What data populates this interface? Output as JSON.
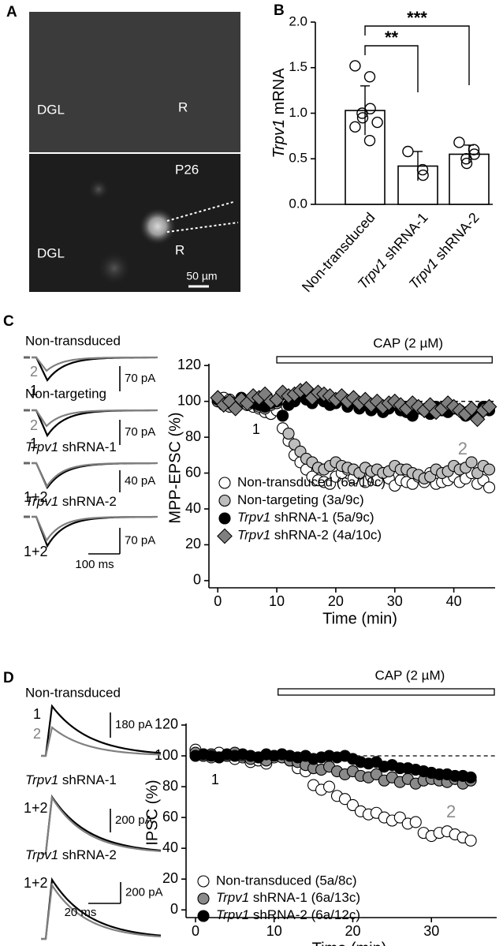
{
  "panels": [
    "A",
    "B",
    "C",
    "D"
  ],
  "panel_a": {
    "top_labels": [
      "DGL",
      "R"
    ],
    "bottom_labels": [
      "P26",
      "R",
      "DGL"
    ],
    "scale": "50 µm"
  },
  "chart_data": [
    {
      "type": "bar",
      "ylabel": "Trpv1 mRNA",
      "categories": [
        "Non-transduced",
        "Trpv1 shRNA-1",
        "Trpv1 shRNA-2"
      ],
      "values": [
        1.03,
        0.42,
        0.55
      ],
      "errors": [
        0.27,
        0.16,
        0.1
      ],
      "points": [
        [
          1.52,
          1.4,
          1.05,
          1.0,
          0.95,
          0.9,
          0.85,
          0.7
        ],
        [
          0.58,
          0.38,
          0.32
        ],
        [
          0.68,
          0.6,
          0.55,
          0.5,
          0.45
        ]
      ],
      "color": "#ffffff",
      "ylim": [
        0,
        2
      ],
      "yticks": [
        {
          "value": 0,
          "label": "0.0"
        },
        0.5,
        {
          "value": 1,
          "label": "1.0"
        },
        1.5,
        {
          "value": 2,
          "label": "2.0"
        }
      ],
      "significance": [
        {
          "label": "**",
          "from": 0,
          "to": 1
        },
        {
          "label": "***",
          "from": 0,
          "to": 2
        }
      ]
    },
    {
      "type": "scatter",
      "xlabel": "Time (min)",
      "ylabel": "MPP-EPSC (%)",
      "x": [
        0,
        1,
        2,
        3,
        4,
        5,
        6,
        7,
        8,
        9,
        10,
        11,
        12,
        13,
        14,
        15,
        16,
        17,
        18,
        19,
        20,
        21,
        22,
        23,
        24,
        25,
        26,
        27,
        28,
        29,
        30,
        31,
        32,
        33,
        34,
        35,
        36,
        37,
        38,
        39,
        40,
        41,
        42,
        43,
        44,
        45,
        46
      ],
      "series": [
        {
          "name": "Non-transduced (6a/10c)",
          "color": "#ffffff",
          "marker": "circle",
          "values": [
            100,
            102,
            101,
            99,
            100,
            98,
            97,
            96,
            94,
            93,
            95,
            85,
            78,
            70,
            66,
            62,
            58,
            56,
            55,
            54,
            58,
            60,
            62,
            57,
            60,
            55,
            58,
            56,
            60,
            57,
            53,
            56,
            55,
            54,
            58,
            55,
            60,
            54,
            55,
            56,
            58,
            55,
            57,
            60,
            54,
            56,
            52
          ]
        },
        {
          "name": "Non-targeting (3a/9c)",
          "color": "#bdbdbd",
          "marker": "circle",
          "values": [
            100,
            98,
            97,
            99,
            101,
            98,
            100,
            97,
            96,
            98,
            99,
            92,
            82,
            76,
            72,
            68,
            66,
            63,
            62,
            64,
            66,
            64,
            63,
            62,
            60,
            63,
            61,
            62,
            60,
            61,
            64,
            62,
            62,
            60,
            59,
            57,
            58,
            62,
            60,
            61,
            64,
            62,
            63,
            66,
            60,
            64,
            62
          ]
        },
        {
          "name": "Trpv1 shRNA-1 (5a/9c)",
          "color": "#000000",
          "marker": "circle",
          "values": [
            101,
            99,
            100,
            98,
            102,
            100,
            99,
            98,
            97,
            99,
            100,
            92,
            98,
            100,
            103,
            101,
            99,
            102,
            100,
            98,
            99,
            101,
            97,
            100,
            96,
            98,
            95,
            97,
            94,
            96,
            98,
            95,
            94,
            92,
            96,
            95,
            93,
            97,
            95,
            94,
            96,
            95,
            92,
            94,
            93,
            97,
            95
          ]
        },
        {
          "name": "Trpv1 shRNA-2 (4a/10c)",
          "color": "#7f7f7f",
          "marker": "diamond",
          "values": [
            102,
            98,
            100,
            96,
            101,
            99,
            103,
            102,
            104,
            100,
            101,
            105,
            103,
            104,
            106,
            107,
            102,
            105,
            104,
            103,
            101,
            103,
            100,
            102,
            99,
            101,
            98,
            100,
            97,
            99,
            100,
            98,
            96,
            99,
            97,
            95,
            98,
            94,
            96,
            99,
            97,
            95,
            93,
            96,
            90,
            95,
            97
          ]
        }
      ],
      "xlim": [
        -1.5,
        47
      ],
      "xticks": [
        0,
        10,
        20,
        30,
        40
      ],
      "ylim": [
        -4,
        121
      ],
      "yticks": [
        0,
        20,
        40,
        60,
        80,
        100,
        120
      ],
      "hline": 100,
      "bar": {
        "label": "CAP (2 µM)",
        "x": [
          10,
          46.5
        ]
      },
      "annotations": [
        {
          "text": "1",
          "x": 6.5,
          "y": 84,
          "color": "#000000"
        },
        {
          "text": "2",
          "x": 41.5,
          "y": 73,
          "color": "#8c8c8c"
        }
      ]
    },
    {
      "type": "scatter",
      "xlabel": "Time (min)",
      "ylabel": "IPSC (%)",
      "x": [
        0,
        1,
        2,
        3,
        4,
        5,
        6,
        7,
        8,
        9,
        10,
        11,
        12,
        13,
        14,
        15,
        16,
        17,
        18,
        19,
        20,
        21,
        22,
        23,
        24,
        25,
        26,
        27,
        28,
        29,
        30,
        31,
        32,
        33,
        34,
        35
      ],
      "series": [
        {
          "name": "Non-transduced (5a/8c)",
          "color": "#ffffff",
          "marker": "circle",
          "values": [
            104,
            101,
            99,
            102,
            100,
            98,
            99,
            96,
            97,
            95,
            99,
            101,
            97,
            92,
            90,
            81,
            78,
            80,
            74,
            72,
            68,
            64,
            62,
            63,
            60,
            58,
            60,
            56,
            57,
            50,
            48,
            50,
            51,
            49,
            47,
            45
          ]
        },
        {
          "name": "Trpv1 shRNA-1 (6a/13c)",
          "color": "#8a8a8a",
          "marker": "circle",
          "values": [
            102,
            100,
            101,
            99,
            100,
            102,
            100,
            98,
            99,
            97,
            100,
            99,
            97,
            96,
            94,
            92,
            91,
            93,
            90,
            88,
            90,
            87,
            86,
            88,
            84,
            86,
            83,
            85,
            82,
            84,
            85,
            84,
            83,
            85,
            82,
            84
          ]
        },
        {
          "name": "Trpv1 shRNA-2 (6a/12c)",
          "color": "#000000",
          "marker": "circle",
          "values": [
            100,
            101,
            100,
            99,
            101,
            100,
            101,
            100,
            99,
            101,
            100,
            101,
            100,
            99,
            100,
            98,
            99,
            100,
            99,
            100,
            98,
            96,
            95,
            96,
            93,
            94,
            92,
            92,
            91,
            90,
            89,
            88,
            88,
            87,
            87,
            86
          ]
        }
      ],
      "xlim": [
        -1.2,
        38.3
      ],
      "xticks": [
        0,
        10,
        20,
        30
      ],
      "ylim": [
        -5,
        121
      ],
      "yticks": [
        0,
        20,
        40,
        60,
        80,
        100,
        120
      ],
      "hline": 100,
      "bar": {
        "label": "CAP (2 µM)",
        "x": [
          10.5,
          38
        ]
      },
      "annotations": [
        {
          "text": "1",
          "x": 2.5,
          "y": 84,
          "color": "#000000"
        },
        {
          "text": "2",
          "x": 32.5,
          "y": 63,
          "color": "#8c8c8c"
        }
      ]
    }
  ],
  "traces_c": [
    {
      "title": "Non-transduced",
      "labels": [
        "2",
        "1"
      ],
      "scale": "70 pA"
    },
    {
      "title": "Non-targeting",
      "labels": [
        "2",
        "1"
      ],
      "scale": "70 pA"
    },
    {
      "title": "Trpv1 shRNA-1",
      "labels": [
        "1+2"
      ],
      "scale": "40 pA"
    },
    {
      "title": "Trpv1 shRNA-2",
      "labels": [
        "1+2"
      ],
      "scale": "70 pA",
      "time_scale": "100 ms"
    }
  ],
  "traces_d": [
    {
      "title": "Non-transduced",
      "labels": [
        "1",
        "2"
      ],
      "scale": "180 pA"
    },
    {
      "title": "Trpv1 shRNA-1",
      "labels": [
        "1+2"
      ],
      "scale": "200 pA"
    },
    {
      "title": "Trpv1 shRNA-2",
      "labels": [
        "1+2"
      ],
      "scale": "200 pA",
      "time_scale": "20 ms"
    }
  ]
}
